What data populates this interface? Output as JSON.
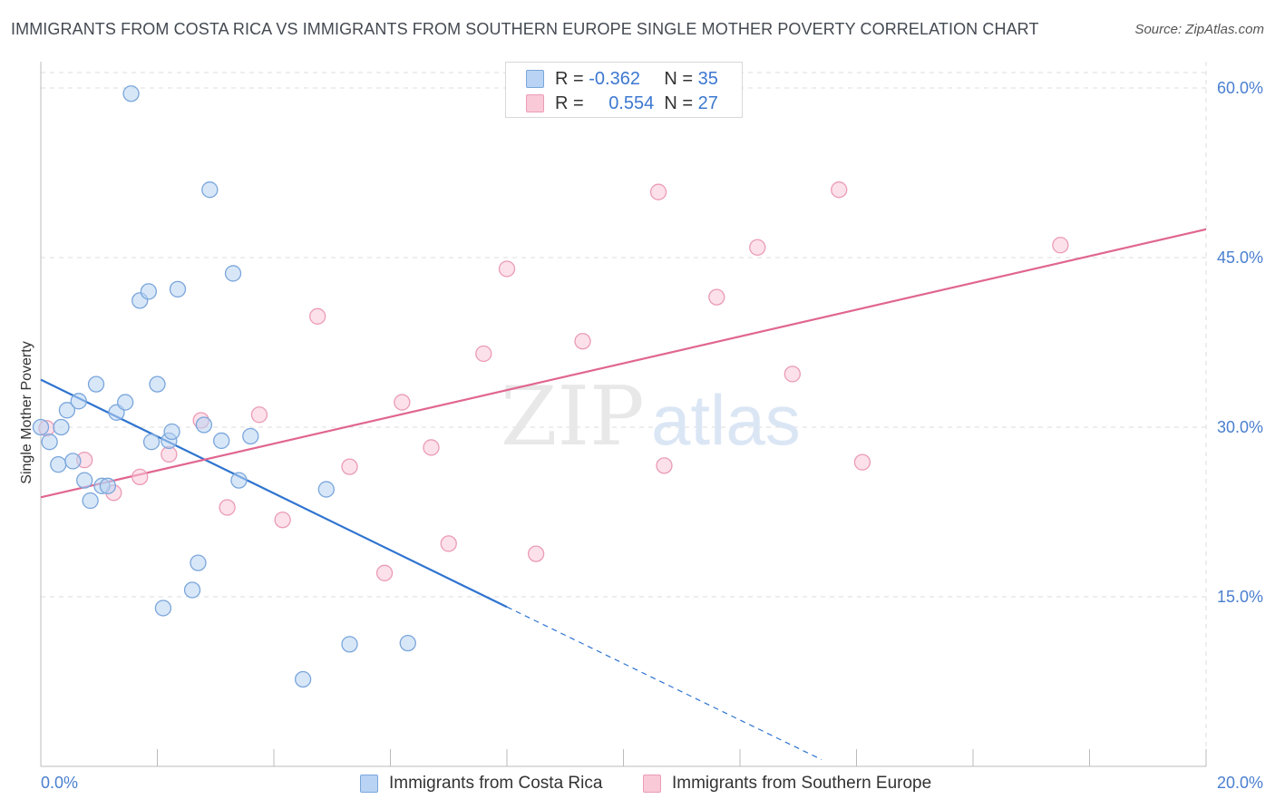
{
  "header": {
    "title": "IMMIGRANTS FROM COSTA RICA VS IMMIGRANTS FROM SOUTHERN EUROPE SINGLE MOTHER POVERTY CORRELATION CHART",
    "source": "Source: ZipAtlas.com"
  },
  "watermark": {
    "zip": "ZIP",
    "atlas": "atlas"
  },
  "legend": {
    "r_label": "R =",
    "n_label": "N =",
    "series1": {
      "r": "-0.362",
      "n": "35"
    },
    "series2": {
      "r": "0.554",
      "n": "27"
    }
  },
  "colors": {
    "series1_fill": "#b8d3f3",
    "series1_stroke": "#7aa6dc",
    "series1_line": "#2f74d0",
    "series2_fill": "#f9c9d8",
    "series2_stroke": "#eb9bb5",
    "series2_line": "#e06690",
    "tick_label": "#4a7fd0",
    "grid": "#dddddd"
  },
  "chart_data": {
    "type": "scatter",
    "title": "IMMIGRANTS FROM COSTA RICA VS IMMIGRANTS FROM SOUTHERN EUROPE SINGLE MOTHER POVERTY CORRELATION CHART",
    "xlabel": "",
    "ylabel": "Single Mother Poverty",
    "xlim": [
      0,
      20
    ],
    "ylim": [
      0,
      60
    ],
    "x_tick_labels": [
      "0.0%",
      "20.0%"
    ],
    "y_ticks": [
      15,
      30,
      45,
      60
    ],
    "y_tick_labels": [
      "15.0%",
      "30.0%",
      "45.0%",
      "60.0%"
    ],
    "grid": true,
    "legend_position": "top-center",
    "series": [
      {
        "name": "Immigrants from Costa Rica",
        "r": -0.362,
        "n": 35,
        "points": [
          [
            0.0,
            30.0
          ],
          [
            0.15,
            28.7
          ],
          [
            0.3,
            26.7
          ],
          [
            0.35,
            30.0
          ],
          [
            0.45,
            31.5
          ],
          [
            0.55,
            27.0
          ],
          [
            0.65,
            32.3
          ],
          [
            0.75,
            25.3
          ],
          [
            0.85,
            23.5
          ],
          [
            0.95,
            33.8
          ],
          [
            1.05,
            24.8
          ],
          [
            1.15,
            24.8
          ],
          [
            1.3,
            31.3
          ],
          [
            1.45,
            32.2
          ],
          [
            1.55,
            59.5
          ],
          [
            1.7,
            41.2
          ],
          [
            1.85,
            42.0
          ],
          [
            1.9,
            28.7
          ],
          [
            2.0,
            33.8
          ],
          [
            2.1,
            14.0
          ],
          [
            2.2,
            28.8
          ],
          [
            2.25,
            29.6
          ],
          [
            2.35,
            42.2
          ],
          [
            2.6,
            15.6
          ],
          [
            2.7,
            18.0
          ],
          [
            2.8,
            30.2
          ],
          [
            2.9,
            51.0
          ],
          [
            3.1,
            28.8
          ],
          [
            3.3,
            43.6
          ],
          [
            3.4,
            25.3
          ],
          [
            3.6,
            29.2
          ],
          [
            4.5,
            7.7
          ],
          [
            4.9,
            24.5
          ],
          [
            5.3,
            10.8
          ],
          [
            6.3,
            10.9
          ]
        ],
        "trend": {
          "x": [
            0,
            8,
            13.4
          ],
          "y": [
            34.2,
            14.1,
            0.6
          ],
          "solid_until_x": 8
        }
      },
      {
        "name": "Immigrants from Southern Europe",
        "r": 0.554,
        "n": 27,
        "points": [
          [
            0.1,
            29.9
          ],
          [
            0.75,
            27.1
          ],
          [
            1.25,
            24.2
          ],
          [
            1.7,
            25.6
          ],
          [
            2.2,
            27.6
          ],
          [
            2.75,
            30.6
          ],
          [
            3.2,
            22.9
          ],
          [
            3.75,
            31.1
          ],
          [
            4.15,
            21.8
          ],
          [
            4.75,
            39.8
          ],
          [
            5.3,
            26.5
          ],
          [
            5.9,
            17.1
          ],
          [
            6.2,
            32.2
          ],
          [
            6.7,
            28.2
          ],
          [
            7.0,
            19.7
          ],
          [
            7.6,
            36.5
          ],
          [
            8.0,
            44.0
          ],
          [
            8.5,
            18.8
          ],
          [
            9.3,
            37.6
          ],
          [
            10.6,
            50.8
          ],
          [
            10.7,
            26.6
          ],
          [
            11.6,
            41.5
          ],
          [
            12.3,
            45.9
          ],
          [
            12.9,
            34.7
          ],
          [
            13.7,
            51.0
          ],
          [
            14.1,
            26.9
          ],
          [
            17.5,
            46.1
          ]
        ],
        "trend": {
          "x": [
            0,
            20
          ],
          "y": [
            23.8,
            47.5
          ]
        }
      }
    ]
  }
}
